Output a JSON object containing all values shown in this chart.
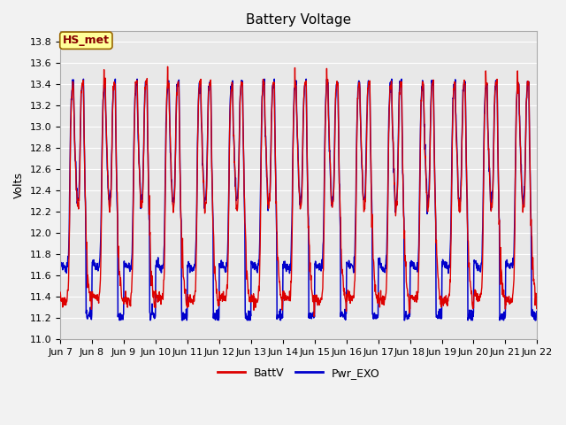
{
  "title": "Battery Voltage",
  "ylabel": "Volts",
  "xlabel": "",
  "ylim": [
    11.0,
    13.9
  ],
  "yticks": [
    11.0,
    11.2,
    11.4,
    11.6,
    11.8,
    12.0,
    12.2,
    12.4,
    12.6,
    12.8,
    13.0,
    13.2,
    13.4,
    13.6,
    13.8
  ],
  "xtick_labels": [
    "Jun 7",
    "Jun 8",
    "Jun 9",
    "Jun 10",
    "Jun 11",
    "Jun 12",
    "Jun 13",
    "Jun 14",
    "Jun 15",
    "Jun 16",
    "Jun 17",
    "Jun 18",
    "Jun 19",
    "Jun 20",
    "Jun 21",
    "Jun 22"
  ],
  "batt_color": "#dd0000",
  "pwr_color": "#0000cc",
  "legend_labels": [
    "BattV",
    "Pwr_EXO"
  ],
  "annotation_text": "HS_met",
  "annotation_bg": "#ffff99",
  "annotation_border": "#996600",
  "plot_bg": "#e8e8e8",
  "fig_bg": "#f2f2f2",
  "grid_color": "#ffffff",
  "title_fontsize": 11,
  "label_fontsize": 9,
  "tick_fontsize": 8,
  "legend_fontsize": 9
}
